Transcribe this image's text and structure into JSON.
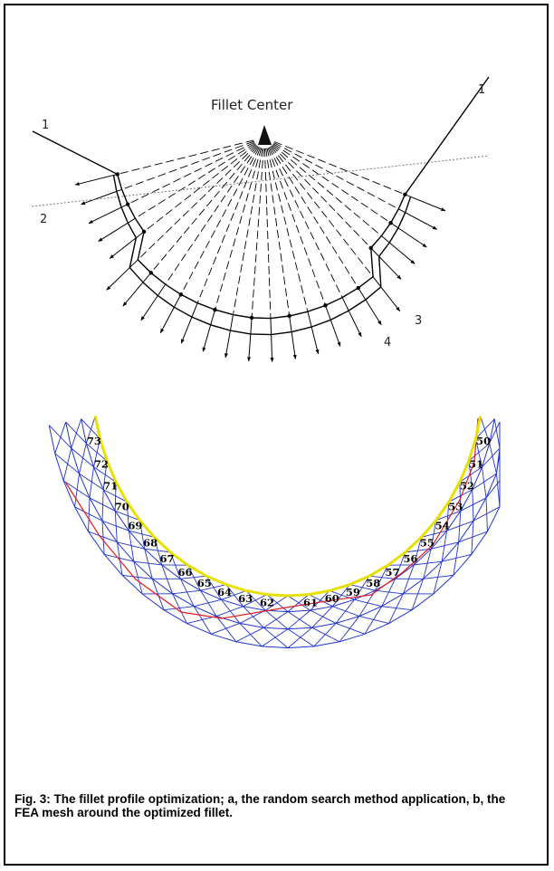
{
  "figure_a": {
    "center_label": "Fillet Center",
    "label_1_left": "1",
    "label_1_right": "1",
    "label_2": "2",
    "label_3": "3",
    "label_4": "4"
  },
  "figure_b": {
    "node_labels": [
      "73",
      "72",
      "71",
      "70",
      "69",
      "68",
      "67",
      "66",
      "65",
      "64",
      "63",
      "62",
      "61",
      "60",
      "59",
      "58",
      "57",
      "56",
      "55",
      "54",
      "53",
      "52",
      "51",
      "50"
    ]
  },
  "caption": "Fig. 3: The fillet profile optimization; a, the random search method application, b, the FEA mesh around the optimized fillet.",
  "colors": {
    "mesh": "#2233cc",
    "initial_profile": "#e02020",
    "optimized_nodes": "#e8e000",
    "lines": "#000000"
  }
}
